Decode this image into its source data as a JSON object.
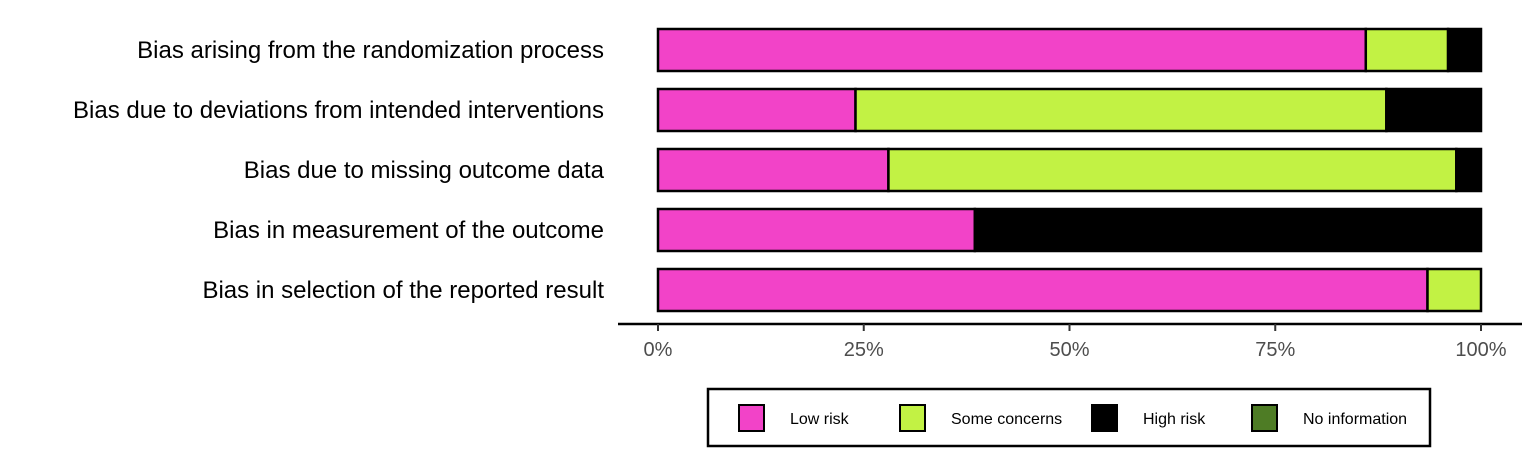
{
  "chart_data": {
    "type": "bar",
    "orientation": "horizontal",
    "stacked": true,
    "categories": [
      "Bias arising from the randomization process",
      "Bias due to deviations from intended interventions",
      "Bias due to missing outcome data",
      "Bias in measurement of the outcome",
      "Bias in selection of the reported result"
    ],
    "series": [
      {
        "name": "Low risk",
        "color": "#f243c8",
        "values": [
          86,
          24,
          28,
          38.5,
          93.5
        ]
      },
      {
        "name": "Some concerns",
        "color": "#c2f244",
        "values": [
          10,
          64.5,
          69,
          0,
          6.5
        ]
      },
      {
        "name": "High risk",
        "color": "#000000",
        "values": [
          4,
          11.5,
          3,
          61.5,
          0
        ]
      },
      {
        "name": "No information",
        "color": "#4e7c25",
        "values": [
          0,
          0,
          0,
          0,
          0
        ]
      }
    ],
    "x_ticks": [
      "0%",
      "25%",
      "50%",
      "75%",
      "100%"
    ],
    "xlim": [
      0,
      100
    ],
    "xlabel": "",
    "ylabel": "",
    "grid": false,
    "legend_position": "bottom"
  }
}
